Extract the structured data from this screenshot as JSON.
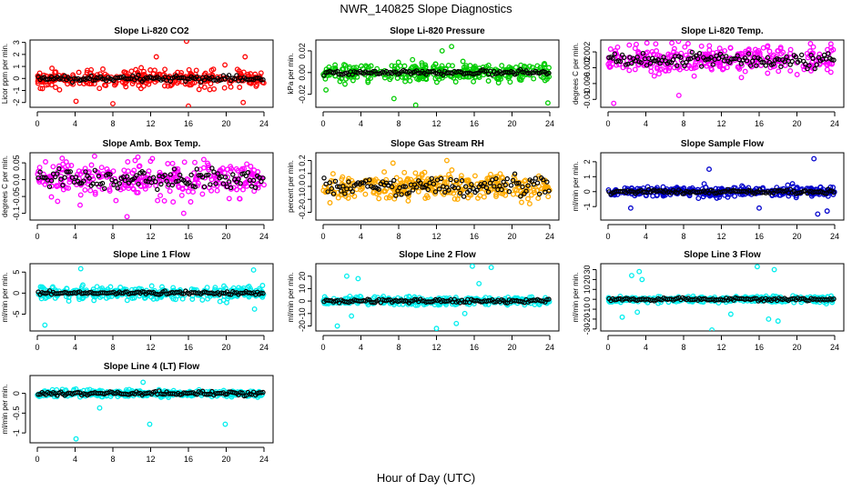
{
  "figure": {
    "title": "NWR_140825  Slope Diagnostics",
    "xlabel": "Hour of Day (UTC)"
  },
  "chart_data": [
    {
      "type": "scatter",
      "title": "Slope Li-820 CO2",
      "ylabel": "Licor ppm per min.",
      "xlim": [
        0,
        24
      ],
      "xticks": [
        0,
        4,
        8,
        12,
        16,
        20,
        24
      ],
      "ylim": [
        -2.4,
        3.2
      ],
      "yticks": [
        -2,
        -1,
        0,
        1,
        2,
        3
      ],
      "color": "#ff0000",
      "black_spread": 0.25,
      "spread": 0.75,
      "outliers": [
        [
          4.1,
          -1.9
        ],
        [
          8.0,
          -2.1
        ],
        [
          12.6,
          1.8
        ],
        [
          15.8,
          3.1
        ],
        [
          16.0,
          -2.3
        ],
        [
          21.8,
          -2.0
        ],
        [
          22.0,
          1.8
        ]
      ]
    },
    {
      "type": "scatter",
      "title": "Slope Li-820 Pressure",
      "ylabel": "kPa per min.",
      "xlim": [
        0,
        24
      ],
      "xticks": [
        0,
        4,
        8,
        12,
        16,
        20,
        24
      ],
      "ylim": [
        -0.032,
        0.03
      ],
      "yticks": [
        -0.02,
        0.0,
        0.02
      ],
      "color": "#00cc00",
      "black_spread": 0.002,
      "spread": 0.008,
      "outliers": [
        [
          0.3,
          -0.016
        ],
        [
          7.5,
          -0.024
        ],
        [
          9.8,
          -0.03
        ],
        [
          12.6,
          0.02
        ],
        [
          13.6,
          0.024
        ],
        [
          23.8,
          -0.028
        ]
      ]
    },
    {
      "type": "scatter",
      "title": "Slope Li-820 Temp.",
      "ylabel": "degrees C per min.",
      "xlim": [
        0,
        24
      ],
      "xticks": [
        0,
        4,
        8,
        12,
        16,
        20,
        24
      ],
      "ylim": [
        -0.012,
        0.005
      ],
      "yticks": [
        -0.01,
        -0.006,
        -0.002,
        0.002
      ],
      "color": "#ff00ff",
      "black_spread": 0.0018,
      "spread": 0.0035,
      "outliers": [
        [
          0.6,
          -0.011
        ],
        [
          23.6,
          0.004
        ],
        [
          7.5,
          -0.009
        ]
      ]
    },
    {
      "type": "scatter",
      "title": "Slope Amb. Box Temp.",
      "ylabel": "degrees C per min.",
      "xlim": [
        0,
        24
      ],
      "xticks": [
        0,
        4,
        8,
        12,
        16,
        20,
        24
      ],
      "ylim": [
        -0.12,
        0.08
      ],
      "yticks": [
        -0.1,
        -0.05,
        0.0,
        0.05
      ],
      "color": "#ff00ff",
      "black_spread": 0.03,
      "spread": 0.05,
      "outliers": [
        [
          9.5,
          -0.11
        ],
        [
          15.5,
          -0.1
        ]
      ]
    },
    {
      "type": "scatter",
      "title": "Slope Gas Stream RH",
      "ylabel": "percent per min.",
      "xlim": [
        0,
        24
      ],
      "xticks": [
        0,
        4,
        8,
        12,
        16,
        20,
        24
      ],
      "ylim": [
        -0.26,
        0.26
      ],
      "yticks": [
        -0.2,
        -0.1,
        0.0,
        0.1,
        0.2
      ],
      "color": "#ffaa00",
      "black_spread": 0.07,
      "spread": 0.1,
      "outliers": [
        [
          7.4,
          0.18
        ],
        [
          13.1,
          0.2
        ]
      ]
    },
    {
      "type": "scatter",
      "title": "Slope Sample Flow",
      "ylabel": "ml/min per min.",
      "xlim": [
        0,
        24
      ],
      "xticks": [
        0,
        4,
        8,
        12,
        16,
        20,
        24
      ],
      "ylim": [
        -1.9,
        2.6
      ],
      "yticks": [
        -1,
        0,
        1,
        2
      ],
      "color": "#0000cc",
      "black_spread": 0.15,
      "spread": 0.35,
      "outliers": [
        [
          2.4,
          -1.1
        ],
        [
          10.7,
          1.5
        ],
        [
          16.0,
          -1.1
        ],
        [
          21.8,
          2.2
        ],
        [
          22.2,
          -1.5
        ],
        [
          23.2,
          -1.3
        ]
      ]
    },
    {
      "type": "scatter",
      "title": "Slope Line 1 Flow",
      "ylabel": "ml/min per min.",
      "xlim": [
        0,
        24
      ],
      "xticks": [
        0,
        4,
        8,
        12,
        16,
        20,
        24
      ],
      "ylim": [
        -9,
        7
      ],
      "yticks": [
        -5,
        0,
        5
      ],
      "color": "#00eeee",
      "black_spread": 0.4,
      "spread": 1.5,
      "outliers": [
        [
          0.8,
          -7.6
        ],
        [
          4.6,
          5.8
        ],
        [
          22.9,
          5.5
        ],
        [
          23.0,
          -3.8
        ]
      ]
    },
    {
      "type": "scatter",
      "title": "Slope Line 2 Flow",
      "ylabel": "ml/min per min.",
      "xlim": [
        0,
        24
      ],
      "xticks": [
        0,
        4,
        8,
        12,
        16,
        20,
        24
      ],
      "ylim": [
        -24,
        30
      ],
      "yticks": [
        -20,
        -10,
        0,
        10,
        20
      ],
      "color": "#00eeee",
      "black_spread": 1.5,
      "spread": 3,
      "outliers": [
        [
          2.5,
          20
        ],
        [
          3.7,
          18
        ],
        [
          3.0,
          -12
        ],
        [
          1.5,
          -20
        ],
        [
          12.0,
          -22
        ],
        [
          14.1,
          -18
        ],
        [
          15.0,
          -10
        ],
        [
          15.8,
          28
        ],
        [
          17.8,
          27
        ],
        [
          16.5,
          14
        ]
      ]
    },
    {
      "type": "scatter",
      "title": "Slope Line 3 Flow",
      "ylabel": "ml/min per min.",
      "xlim": [
        0,
        24
      ],
      "xticks": [
        0,
        4,
        8,
        12,
        16,
        20,
        24
      ],
      "ylim": [
        -32,
        36
      ],
      "yticks": [
        -30,
        -20,
        -10,
        0,
        10,
        20,
        30
      ],
      "color": "#00eeee",
      "black_spread": 1.5,
      "spread": 3,
      "outliers": [
        [
          2.5,
          24
        ],
        [
          3.3,
          28
        ],
        [
          3.6,
          20
        ],
        [
          1.5,
          -18
        ],
        [
          3.1,
          -13
        ],
        [
          11.0,
          -31
        ],
        [
          13.0,
          -15
        ],
        [
          15.8,
          33
        ],
        [
          17.6,
          30
        ],
        [
          17.0,
          -20
        ],
        [
          18.0,
          -22
        ]
      ]
    },
    {
      "type": "scatter",
      "title": "Slope Line 4 (LT) Flow",
      "ylabel": "ml/min per min.",
      "xlim": [
        0,
        24
      ],
      "xticks": [
        0,
        4,
        8,
        12,
        16,
        20,
        24
      ],
      "ylim": [
        -1.25,
        0.45
      ],
      "yticks": [
        -1.0,
        -0.5,
        0.0
      ],
      "color": "#00eeee",
      "black_spread": 0.05,
      "spread": 0.09,
      "outliers": [
        [
          4.1,
          -1.15
        ],
        [
          11.9,
          -0.78
        ],
        [
          19.9,
          -0.78
        ],
        [
          11.2,
          0.28
        ],
        [
          6.6,
          -0.37
        ],
        [
          13.1,
          -0.1
        ]
      ]
    }
  ]
}
